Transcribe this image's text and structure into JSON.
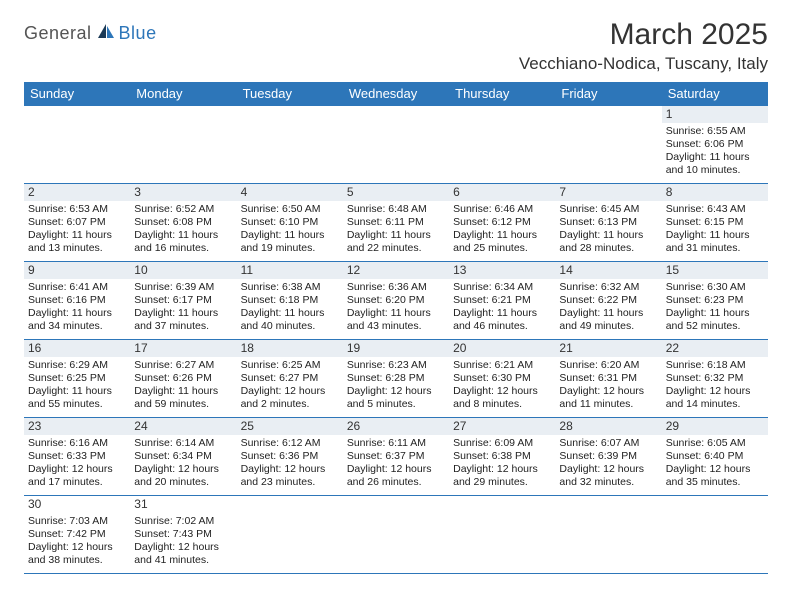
{
  "logo": {
    "text1": "General",
    "text2": "Blue"
  },
  "title": "March 2025",
  "location": "Vecchiano-Nodica, Tuscany, Italy",
  "colors": {
    "header_bar": "#2d76b9",
    "row_border": "#2d76b9",
    "daynum_bg": "#e9eef3",
    "text": "#222222",
    "background": "#ffffff"
  },
  "typography": {
    "title_fontsize": 30,
    "location_fontsize": 17,
    "dayheader_fontsize": 13,
    "cell_fontsize": 10.5
  },
  "day_headers": [
    "Sunday",
    "Monday",
    "Tuesday",
    "Wednesday",
    "Thursday",
    "Friday",
    "Saturday"
  ],
  "weeks": [
    [
      null,
      null,
      null,
      null,
      null,
      null,
      {
        "n": "1",
        "sr": "Sunrise: 6:55 AM",
        "ss": "Sunset: 6:06 PM",
        "d1": "Daylight: 11 hours",
        "d2": "and 10 minutes."
      }
    ],
    [
      {
        "n": "2",
        "sr": "Sunrise: 6:53 AM",
        "ss": "Sunset: 6:07 PM",
        "d1": "Daylight: 11 hours",
        "d2": "and 13 minutes."
      },
      {
        "n": "3",
        "sr": "Sunrise: 6:52 AM",
        "ss": "Sunset: 6:08 PM",
        "d1": "Daylight: 11 hours",
        "d2": "and 16 minutes."
      },
      {
        "n": "4",
        "sr": "Sunrise: 6:50 AM",
        "ss": "Sunset: 6:10 PM",
        "d1": "Daylight: 11 hours",
        "d2": "and 19 minutes."
      },
      {
        "n": "5",
        "sr": "Sunrise: 6:48 AM",
        "ss": "Sunset: 6:11 PM",
        "d1": "Daylight: 11 hours",
        "d2": "and 22 minutes."
      },
      {
        "n": "6",
        "sr": "Sunrise: 6:46 AM",
        "ss": "Sunset: 6:12 PM",
        "d1": "Daylight: 11 hours",
        "d2": "and 25 minutes."
      },
      {
        "n": "7",
        "sr": "Sunrise: 6:45 AM",
        "ss": "Sunset: 6:13 PM",
        "d1": "Daylight: 11 hours",
        "d2": "and 28 minutes."
      },
      {
        "n": "8",
        "sr": "Sunrise: 6:43 AM",
        "ss": "Sunset: 6:15 PM",
        "d1": "Daylight: 11 hours",
        "d2": "and 31 minutes."
      }
    ],
    [
      {
        "n": "9",
        "sr": "Sunrise: 6:41 AM",
        "ss": "Sunset: 6:16 PM",
        "d1": "Daylight: 11 hours",
        "d2": "and 34 minutes."
      },
      {
        "n": "10",
        "sr": "Sunrise: 6:39 AM",
        "ss": "Sunset: 6:17 PM",
        "d1": "Daylight: 11 hours",
        "d2": "and 37 minutes."
      },
      {
        "n": "11",
        "sr": "Sunrise: 6:38 AM",
        "ss": "Sunset: 6:18 PM",
        "d1": "Daylight: 11 hours",
        "d2": "and 40 minutes."
      },
      {
        "n": "12",
        "sr": "Sunrise: 6:36 AM",
        "ss": "Sunset: 6:20 PM",
        "d1": "Daylight: 11 hours",
        "d2": "and 43 minutes."
      },
      {
        "n": "13",
        "sr": "Sunrise: 6:34 AM",
        "ss": "Sunset: 6:21 PM",
        "d1": "Daylight: 11 hours",
        "d2": "and 46 minutes."
      },
      {
        "n": "14",
        "sr": "Sunrise: 6:32 AM",
        "ss": "Sunset: 6:22 PM",
        "d1": "Daylight: 11 hours",
        "d2": "and 49 minutes."
      },
      {
        "n": "15",
        "sr": "Sunrise: 6:30 AM",
        "ss": "Sunset: 6:23 PM",
        "d1": "Daylight: 11 hours",
        "d2": "and 52 minutes."
      }
    ],
    [
      {
        "n": "16",
        "sr": "Sunrise: 6:29 AM",
        "ss": "Sunset: 6:25 PM",
        "d1": "Daylight: 11 hours",
        "d2": "and 55 minutes."
      },
      {
        "n": "17",
        "sr": "Sunrise: 6:27 AM",
        "ss": "Sunset: 6:26 PM",
        "d1": "Daylight: 11 hours",
        "d2": "and 59 minutes."
      },
      {
        "n": "18",
        "sr": "Sunrise: 6:25 AM",
        "ss": "Sunset: 6:27 PM",
        "d1": "Daylight: 12 hours",
        "d2": "and 2 minutes."
      },
      {
        "n": "19",
        "sr": "Sunrise: 6:23 AM",
        "ss": "Sunset: 6:28 PM",
        "d1": "Daylight: 12 hours",
        "d2": "and 5 minutes."
      },
      {
        "n": "20",
        "sr": "Sunrise: 6:21 AM",
        "ss": "Sunset: 6:30 PM",
        "d1": "Daylight: 12 hours",
        "d2": "and 8 minutes."
      },
      {
        "n": "21",
        "sr": "Sunrise: 6:20 AM",
        "ss": "Sunset: 6:31 PM",
        "d1": "Daylight: 12 hours",
        "d2": "and 11 minutes."
      },
      {
        "n": "22",
        "sr": "Sunrise: 6:18 AM",
        "ss": "Sunset: 6:32 PM",
        "d1": "Daylight: 12 hours",
        "d2": "and 14 minutes."
      }
    ],
    [
      {
        "n": "23",
        "sr": "Sunrise: 6:16 AM",
        "ss": "Sunset: 6:33 PM",
        "d1": "Daylight: 12 hours",
        "d2": "and 17 minutes."
      },
      {
        "n": "24",
        "sr": "Sunrise: 6:14 AM",
        "ss": "Sunset: 6:34 PM",
        "d1": "Daylight: 12 hours",
        "d2": "and 20 minutes."
      },
      {
        "n": "25",
        "sr": "Sunrise: 6:12 AM",
        "ss": "Sunset: 6:36 PM",
        "d1": "Daylight: 12 hours",
        "d2": "and 23 minutes."
      },
      {
        "n": "26",
        "sr": "Sunrise: 6:11 AM",
        "ss": "Sunset: 6:37 PM",
        "d1": "Daylight: 12 hours",
        "d2": "and 26 minutes."
      },
      {
        "n": "27",
        "sr": "Sunrise: 6:09 AM",
        "ss": "Sunset: 6:38 PM",
        "d1": "Daylight: 12 hours",
        "d2": "and 29 minutes."
      },
      {
        "n": "28",
        "sr": "Sunrise: 6:07 AM",
        "ss": "Sunset: 6:39 PM",
        "d1": "Daylight: 12 hours",
        "d2": "and 32 minutes."
      },
      {
        "n": "29",
        "sr": "Sunrise: 6:05 AM",
        "ss": "Sunset: 6:40 PM",
        "d1": "Daylight: 12 hours",
        "d2": "and 35 minutes."
      }
    ],
    [
      {
        "n": "30",
        "sr": "Sunrise: 7:03 AM",
        "ss": "Sunset: 7:42 PM",
        "d1": "Daylight: 12 hours",
        "d2": "and 38 minutes."
      },
      {
        "n": "31",
        "sr": "Sunrise: 7:02 AM",
        "ss": "Sunset: 7:43 PM",
        "d1": "Daylight: 12 hours",
        "d2": "and 41 minutes."
      },
      null,
      null,
      null,
      null,
      null
    ]
  ]
}
